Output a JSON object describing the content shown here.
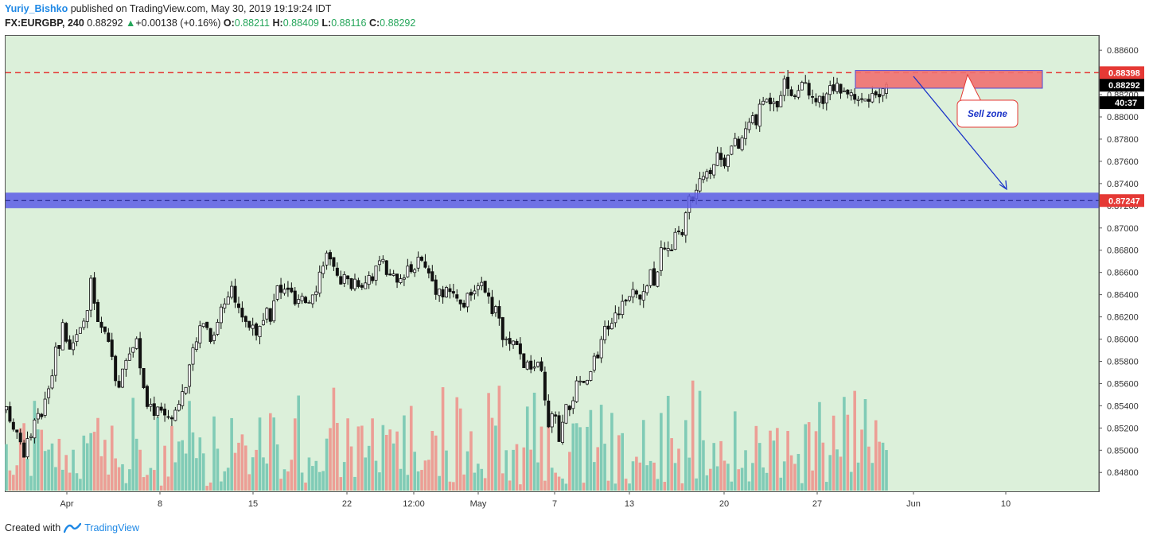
{
  "header": {
    "author": "Yuriy_Bishko",
    "published": "published on TradingView.com, May 30, 2019 19:19:24 IDT",
    "symbol": "FX:EURGBP, 240",
    "last": "0.88292",
    "change": "+0.00138 (+0.16%)",
    "o_label": "O:",
    "o": "0.88211",
    "h_label": "H:",
    "h": "0.88409",
    "l_label": "L:",
    "l": "0.88116",
    "c_label": "C:",
    "c": "0.88292"
  },
  "footer": {
    "created_with": "Created with",
    "brand": "TradingView"
  },
  "colors": {
    "plot_bg": "#dcf0da",
    "resistance_line": "#e53935",
    "support_zone": "#5c5ce6",
    "sell_zone": "#f07070",
    "arrow": "#1a33c8",
    "volume_up": "#80cbb6",
    "volume_down": "#ec9e95",
    "tag_red": "#e53935",
    "tag_black": "#000000"
  },
  "chart_data": {
    "type": "candlestick",
    "symbol": "FX:EURGBP",
    "interval": "240",
    "y_ticks": [
      "0.88600",
      "0.88400",
      "0.88200",
      "0.88000",
      "0.87800",
      "0.87600",
      "0.87400",
      "0.87200",
      "0.87000",
      "0.86800",
      "0.86600",
      "0.86400",
      "0.86200",
      "0.86000",
      "0.85800",
      "0.85600",
      "0.85400",
      "0.85200",
      "0.85000",
      "0.84800"
    ],
    "ylim": [
      0.8463,
      0.8873
    ],
    "x_ticks": [
      "Apr",
      "8",
      "15",
      "22",
      "12:00",
      "May",
      "7",
      "13",
      "20",
      "27",
      "Jun",
      "10"
    ],
    "price_labels": [
      {
        "text": "0.88398",
        "value": 0.88398,
        "kind": "resistance"
      },
      {
        "text": "0.88292",
        "value": 0.88292,
        "kind": "last"
      },
      {
        "text": "40:37",
        "value": 0.88128,
        "kind": "countdown"
      },
      {
        "text": "0.87247",
        "value": 0.87247,
        "kind": "support"
      }
    ],
    "resistance_level": 0.88398,
    "support_level": 0.87247,
    "support_zone": [
      0.87178,
      0.87318
    ],
    "sell_zone": [
      0.88258,
      0.88418
    ],
    "annotation": "Sell zone",
    "path": [
      [
        0.8535,
        0.8535
      ],
      [
        0.8522,
        0.8515
      ],
      [
        0.8506,
        0.8495
      ],
      [
        0.8525,
        0.8518
      ],
      [
        0.8545,
        0.8535
      ],
      [
        0.8588,
        0.8575
      ],
      [
        0.8612,
        0.86
      ],
      [
        0.8594,
        0.859
      ],
      [
        0.86,
        0.8618
      ],
      [
        0.8652,
        0.864
      ],
      [
        0.8612,
        0.8604
      ],
      [
        0.8602,
        0.8595
      ],
      [
        0.8555,
        0.8548
      ],
      [
        0.8585,
        0.859
      ],
      [
        0.8596,
        0.8602
      ],
      [
        0.8539,
        0.8532
      ],
      [
        0.854,
        0.8535
      ],
      [
        0.8529,
        0.8533
      ],
      [
        0.8535,
        0.8536
      ],
      [
        0.8548,
        0.8558
      ],
      [
        0.8585,
        0.8592
      ],
      [
        0.862,
        0.8624
      ],
      [
        0.8601,
        0.8598
      ],
      [
        0.8625,
        0.863
      ],
      [
        0.8644,
        0.8651
      ],
      [
        0.8625,
        0.8622
      ],
      [
        0.8618,
        0.8612
      ],
      [
        0.8607,
        0.8602
      ],
      [
        0.8612,
        0.8626
      ],
      [
        0.864,
        0.8648
      ],
      [
        0.8649,
        0.8645
      ],
      [
        0.8632,
        0.8628
      ],
      [
        0.8628,
        0.8635
      ],
      [
        0.8645,
        0.8652
      ],
      [
        0.868,
        0.8676
      ],
      [
        0.8666,
        0.866
      ],
      [
        0.8656,
        0.865
      ],
      [
        0.8655,
        0.8648
      ],
      [
        0.865,
        0.865
      ],
      [
        0.8655,
        0.8662
      ],
      [
        0.867,
        0.8672
      ],
      [
        0.8662,
        0.8655
      ],
      [
        0.865,
        0.8645
      ],
      [
        0.8652,
        0.8662
      ],
      [
        0.8675,
        0.8677
      ],
      [
        0.8663,
        0.866
      ],
      [
        0.8648,
        0.8643
      ],
      [
        0.8648,
        0.8638
      ],
      [
        0.8636,
        0.8635
      ],
      [
        0.8634,
        0.863
      ],
      [
        0.864,
        0.8648
      ],
      [
        0.865,
        0.8648
      ],
      [
        0.864,
        0.8618
      ],
      [
        0.8603,
        0.86
      ],
      [
        0.8598,
        0.859
      ],
      [
        0.8581,
        0.8585
      ],
      [
        0.8576,
        0.8572
      ],
      [
        0.8578,
        0.8575
      ],
      [
        0.854,
        0.8512
      ],
      [
        0.8506,
        0.852
      ],
      [
        0.8535,
        0.8545
      ],
      [
        0.8555,
        0.856
      ],
      [
        0.8558,
        0.8565
      ],
      [
        0.8575,
        0.859
      ],
      [
        0.8605,
        0.8612
      ],
      [
        0.862,
        0.8622
      ],
      [
        0.863,
        0.8636
      ],
      [
        0.864,
        0.8642
      ],
      [
        0.8636,
        0.864
      ],
      [
        0.8648,
        0.8668
      ],
      [
        0.8672,
        0.868
      ],
      [
        0.8682,
        0.8684
      ],
      [
        0.8688,
        0.8705
      ],
      [
        0.872,
        0.873
      ],
      [
        0.8738,
        0.8742
      ],
      [
        0.8748,
        0.876
      ],
      [
        0.8765,
        0.8768
      ],
      [
        0.877,
        0.8758
      ],
      [
        0.8768,
        0.8778
      ],
      [
        0.8785,
        0.879
      ],
      [
        0.8795,
        0.8808
      ],
      [
        0.8814,
        0.882
      ],
      [
        0.8806,
        0.8818
      ],
      [
        0.8832,
        0.883
      ],
      [
        0.8818,
        0.8822
      ],
      [
        0.8835,
        0.8826
      ],
      [
        0.8815,
        0.881
      ],
      [
        0.8808,
        0.8815
      ],
      [
        0.883,
        0.8825
      ],
      [
        0.8818,
        0.8823
      ],
      [
        0.8822,
        0.8825
      ],
      [
        0.882,
        0.8818
      ],
      [
        0.8816,
        0.8814
      ],
      [
        0.8818,
        0.8816
      ],
      [
        0.882,
        0.8829
      ]
    ],
    "volume_ratio_range": [
      0.35,
      1.0
    ]
  }
}
